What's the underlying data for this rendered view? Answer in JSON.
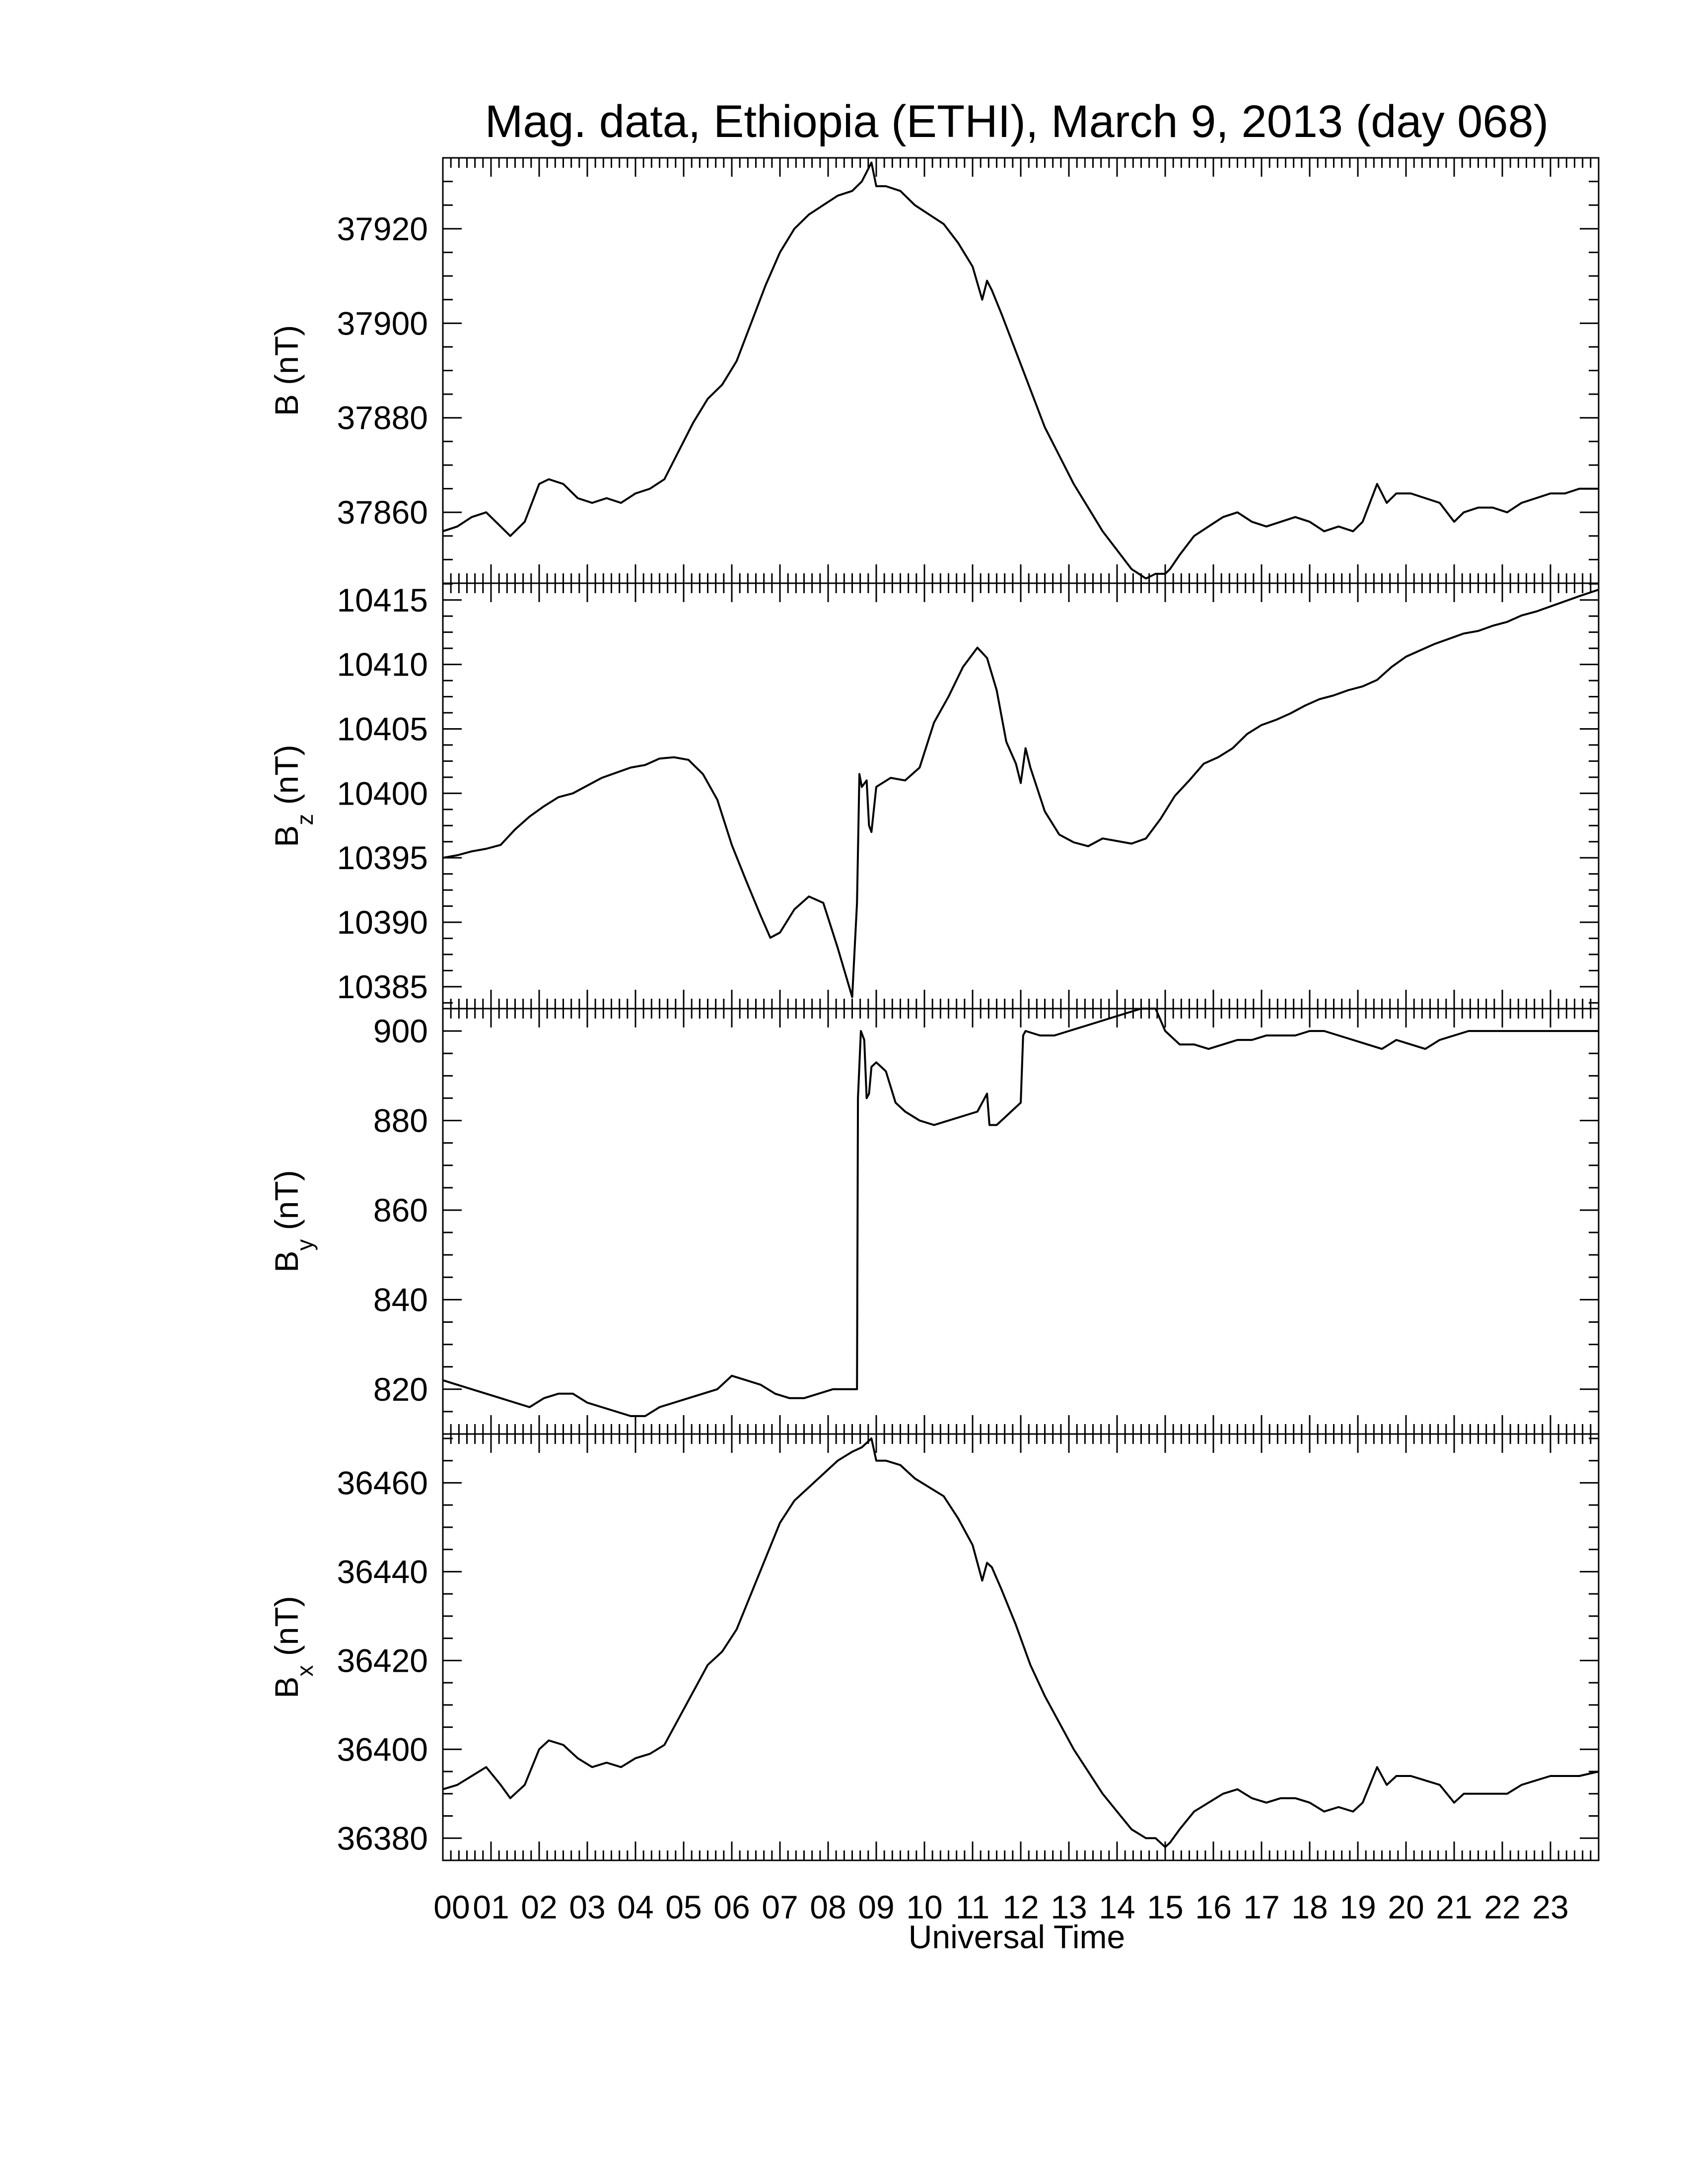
{
  "chart_data": {
    "type": "line",
    "title": "Mag. data, Ethiopia (ETHI), March 9, 2013 (day 068)",
    "xlabel": "Universal Time",
    "xlim": [
      0,
      24
    ],
    "x_tick_labels": [
      "00",
      "01",
      "02",
      "03",
      "04",
      "05",
      "06",
      "07",
      "08",
      "09",
      "10",
      "11",
      "12",
      "13",
      "14",
      "15",
      "16",
      "17",
      "18",
      "19",
      "20",
      "21",
      "22",
      "23"
    ],
    "line_color": "#000000",
    "panels": [
      {
        "ylabel_main": "B",
        "ylabel_sub": "",
        "ylabel_unit": "(nT)",
        "ylim": [
          37845,
          37935
        ],
        "yticks": [
          37860,
          37880,
          37900,
          37920
        ],
        "x": [
          0,
          0.3,
          0.6,
          0.9,
          1.2,
          1.4,
          1.7,
          2.0,
          2.2,
          2.5,
          2.8,
          3.1,
          3.4,
          3.7,
          4.0,
          4.3,
          4.6,
          4.9,
          5.2,
          5.5,
          5.8,
          6.1,
          6.4,
          6.7,
          7.0,
          7.3,
          7.6,
          7.9,
          8.2,
          8.5,
          8.7,
          8.8,
          8.9,
          9.0,
          9.2,
          9.5,
          9.8,
          10.1,
          10.4,
          10.7,
          11.0,
          11.2,
          11.3,
          11.4,
          11.6,
          11.9,
          12.2,
          12.5,
          12.8,
          13.1,
          13.4,
          13.7,
          14.0,
          14.3,
          14.6,
          14.8,
          15.0,
          15.1,
          15.3,
          15.6,
          15.9,
          16.2,
          16.5,
          16.8,
          17.1,
          17.4,
          17.7,
          18.0,
          18.3,
          18.6,
          18.9,
          19.1,
          19.4,
          19.6,
          19.8,
          20.1,
          20.4,
          20.7,
          21.0,
          21.2,
          21.5,
          21.8,
          22.1,
          22.4,
          22.7,
          23.0,
          23.3,
          23.6,
          24.0
        ],
        "y": [
          37856,
          37857,
          37859,
          37860,
          37857,
          37855,
          37858,
          37866,
          37867,
          37866,
          37863,
          37862,
          37863,
          37862,
          37864,
          37865,
          37867,
          37873,
          37879,
          37884,
          37887,
          37892,
          37900,
          37908,
          37915,
          37920,
          37923,
          37925,
          37927,
          37928,
          37930,
          37932,
          37934,
          37929,
          37929,
          37928,
          37925,
          37923,
          37921,
          37917,
          37912,
          37905,
          37909,
          37907,
          37902,
          37894,
          37886,
          37878,
          37872,
          37866,
          37861,
          37856,
          37852,
          37848,
          37846,
          37847,
          37847,
          37848,
          37851,
          37855,
          37857,
          37859,
          37860,
          37858,
          37857,
          37858,
          37859,
          37858,
          37856,
          37857,
          37856,
          37858,
          37866,
          37862,
          37864,
          37864,
          37863,
          37862,
          37858,
          37860,
          37861,
          37861,
          37860,
          37862,
          37863,
          37864,
          37864,
          37865,
          37865
        ]
      },
      {
        "ylabel_main": "B",
        "ylabel_sub": "z",
        "ylabel_unit": "(nT)",
        "ylim": [
          10383.3,
          10416.3
        ],
        "yticks": [
          10385,
          10390,
          10395,
          10400,
          10405,
          10410,
          10415
        ],
        "x": [
          0,
          0.3,
          0.6,
          0.9,
          1.2,
          1.5,
          1.8,
          2.1,
          2.4,
          2.7,
          3.0,
          3.3,
          3.6,
          3.9,
          4.2,
          4.5,
          4.8,
          5.1,
          5.4,
          5.7,
          6.0,
          6.3,
          6.6,
          6.8,
          7.0,
          7.3,
          7.6,
          7.9,
          8.2,
          8.5,
          8.6,
          8.65,
          8.7,
          8.8,
          8.85,
          8.9,
          9.0,
          9.3,
          9.6,
          9.9,
          10.2,
          10.5,
          10.8,
          11.1,
          11.3,
          11.5,
          11.7,
          11.9,
          12.0,
          12.1,
          12.2,
          12.5,
          12.8,
          13.1,
          13.4,
          13.7,
          14.0,
          14.3,
          14.6,
          14.9,
          15.2,
          15.5,
          15.8,
          16.1,
          16.4,
          16.7,
          17.0,
          17.3,
          17.6,
          17.9,
          18.2,
          18.5,
          18.8,
          19.1,
          19.4,
          19.7,
          20.0,
          20.3,
          20.6,
          20.9,
          21.2,
          21.5,
          21.8,
          22.1,
          22.4,
          22.7,
          23.0,
          23.3,
          23.6,
          24.0
        ],
        "y": [
          10395,
          10395.2,
          10395.5,
          10395.7,
          10396,
          10397.2,
          10398.2,
          10399,
          10399.7,
          10400,
          10400.6,
          10401.2,
          10401.6,
          10402,
          10402.2,
          10402.7,
          10402.8,
          10402.6,
          10401.5,
          10399.5,
          10396,
          10393.2,
          10390.5,
          10388.8,
          10389.2,
          10391,
          10392,
          10391.5,
          10388,
          10384.2,
          10391.5,
          10401.5,
          10400.5,
          10401,
          10397.5,
          10397,
          10400.5,
          10401.2,
          10401,
          10402,
          10405.5,
          10407.5,
          10409.8,
          10411.3,
          10410.5,
          10408,
          10404,
          10402.3,
          10400.8,
          10403.5,
          10402,
          10398.6,
          10396.8,
          10396.2,
          10395.9,
          10396.5,
          10396.3,
          10396.1,
          10396.5,
          10398,
          10399.8,
          10401,
          10402.3,
          10402.8,
          10403.5,
          10404.6,
          10405.3,
          10405.7,
          10406.2,
          10406.8,
          10407.3,
          10407.6,
          10408,
          10408.3,
          10408.8,
          10409.8,
          10410.6,
          10411.1,
          10411.6,
          10412,
          10412.4,
          10412.6,
          10413,
          10413.3,
          10413.8,
          10414.1,
          10414.5,
          10414.9,
          10415.3,
          10415.8
        ]
      },
      {
        "ylabel_main": "B",
        "ylabel_sub": "y",
        "ylabel_unit": "(nT)",
        "ylim": [
          810,
          905
        ],
        "yticks": [
          820,
          840,
          860,
          880,
          900
        ],
        "x": [
          0,
          0.3,
          0.6,
          0.9,
          1.2,
          1.5,
          1.8,
          2.1,
          2.4,
          2.7,
          3.0,
          3.3,
          3.6,
          3.9,
          4.2,
          4.5,
          4.8,
          5.1,
          5.4,
          5.7,
          6.0,
          6.3,
          6.6,
          6.9,
          7.2,
          7.5,
          7.8,
          8.1,
          8.4,
          8.6,
          8.62,
          8.68,
          8.75,
          8.8,
          8.85,
          8.9,
          9.0,
          9.2,
          9.4,
          9.6,
          9.9,
          10.2,
          10.5,
          10.8,
          11.1,
          11.3,
          11.35,
          11.5,
          11.8,
          12.0,
          12.05,
          12.1,
          12.4,
          12.7,
          13.0,
          13.3,
          13.6,
          13.9,
          14.2,
          14.5,
          14.8,
          15.0,
          15.3,
          15.6,
          15.9,
          16.2,
          16.5,
          16.8,
          17.1,
          17.4,
          17.7,
          18.0,
          18.3,
          18.6,
          18.9,
          19.2,
          19.5,
          19.8,
          20.1,
          20.4,
          20.7,
          21.0,
          21.3,
          21.6,
          21.9,
          22.2,
          22.5,
          22.8,
          23.1,
          23.4,
          23.7,
          24.0
        ],
        "y": [
          822,
          821,
          820,
          819,
          818,
          817,
          816,
          818,
          819,
          819,
          817,
          816,
          815,
          814,
          814,
          816,
          817,
          818,
          819,
          820,
          823,
          822,
          821,
          819,
          818,
          818,
          819,
          820,
          820,
          820,
          885,
          900,
          898,
          885,
          886,
          892,
          893,
          891,
          884,
          882,
          880,
          879,
          880,
          881,
          882,
          886,
          879,
          879,
          882,
          884,
          899,
          900,
          899,
          899,
          900,
          901,
          902,
          903,
          904,
          905,
          905,
          900,
          897,
          897,
          896,
          897,
          898,
          898,
          899,
          899,
          899,
          900,
          900,
          899,
          898,
          897,
          896,
          898,
          897,
          896,
          898,
          899,
          900,
          900,
          900,
          900,
          900,
          900,
          900,
          900,
          900,
          900
        ]
      },
      {
        "ylabel_main": "B",
        "ylabel_sub": "x",
        "ylabel_unit": "(nT)",
        "ylim": [
          36375,
          36471
        ],
        "yticks": [
          36380,
          36400,
          36420,
          36440,
          36460
        ],
        "x": [
          0,
          0.3,
          0.6,
          0.9,
          1.2,
          1.4,
          1.7,
          2.0,
          2.2,
          2.5,
          2.8,
          3.1,
          3.4,
          3.7,
          4.0,
          4.3,
          4.6,
          4.9,
          5.2,
          5.5,
          5.8,
          6.1,
          6.4,
          6.7,
          7.0,
          7.3,
          7.6,
          7.9,
          8.2,
          8.5,
          8.7,
          8.8,
          8.9,
          9.0,
          9.2,
          9.5,
          9.8,
          10.1,
          10.4,
          10.7,
          11.0,
          11.2,
          11.3,
          11.4,
          11.6,
          11.9,
          12.2,
          12.5,
          12.8,
          13.1,
          13.4,
          13.7,
          14.0,
          14.3,
          14.6,
          14.8,
          15.0,
          15.1,
          15.3,
          15.6,
          15.9,
          16.2,
          16.5,
          16.8,
          17.1,
          17.4,
          17.7,
          18.0,
          18.3,
          18.6,
          18.9,
          19.1,
          19.4,
          19.6,
          19.8,
          20.1,
          20.4,
          20.7,
          21.0,
          21.2,
          21.5,
          21.8,
          22.1,
          22.4,
          22.7,
          23.0,
          23.3,
          23.6,
          24.0
        ],
        "y": [
          36391,
          36392,
          36394,
          36396,
          36392,
          36389,
          36392,
          36400,
          36402,
          36401,
          36398,
          36396,
          36397,
          36396,
          36398,
          36399,
          36401,
          36407,
          36413,
          36419,
          36422,
          36427,
          36435,
          36443,
          36451,
          36456,
          36459,
          36462,
          36465,
          36467,
          36468,
          36469,
          36470,
          36465,
          36465,
          36464,
          36461,
          36459,
          36457,
          36452,
          36446,
          36438,
          36442,
          36441,
          36436,
          36428,
          36419,
          36412,
          36406,
          36400,
          36395,
          36390,
          36386,
          36382,
          36380,
          36380,
          36378,
          36379,
          36382,
          36386,
          36388,
          36390,
          36391,
          36389,
          36388,
          36389,
          36389,
          36388,
          36386,
          36387,
          36386,
          36388,
          36396,
          36392,
          36394,
          36394,
          36393,
          36392,
          36388,
          36390,
          36390,
          36390,
          36390,
          36392,
          36393,
          36394,
          36394,
          36394,
          36395
        ]
      }
    ]
  }
}
